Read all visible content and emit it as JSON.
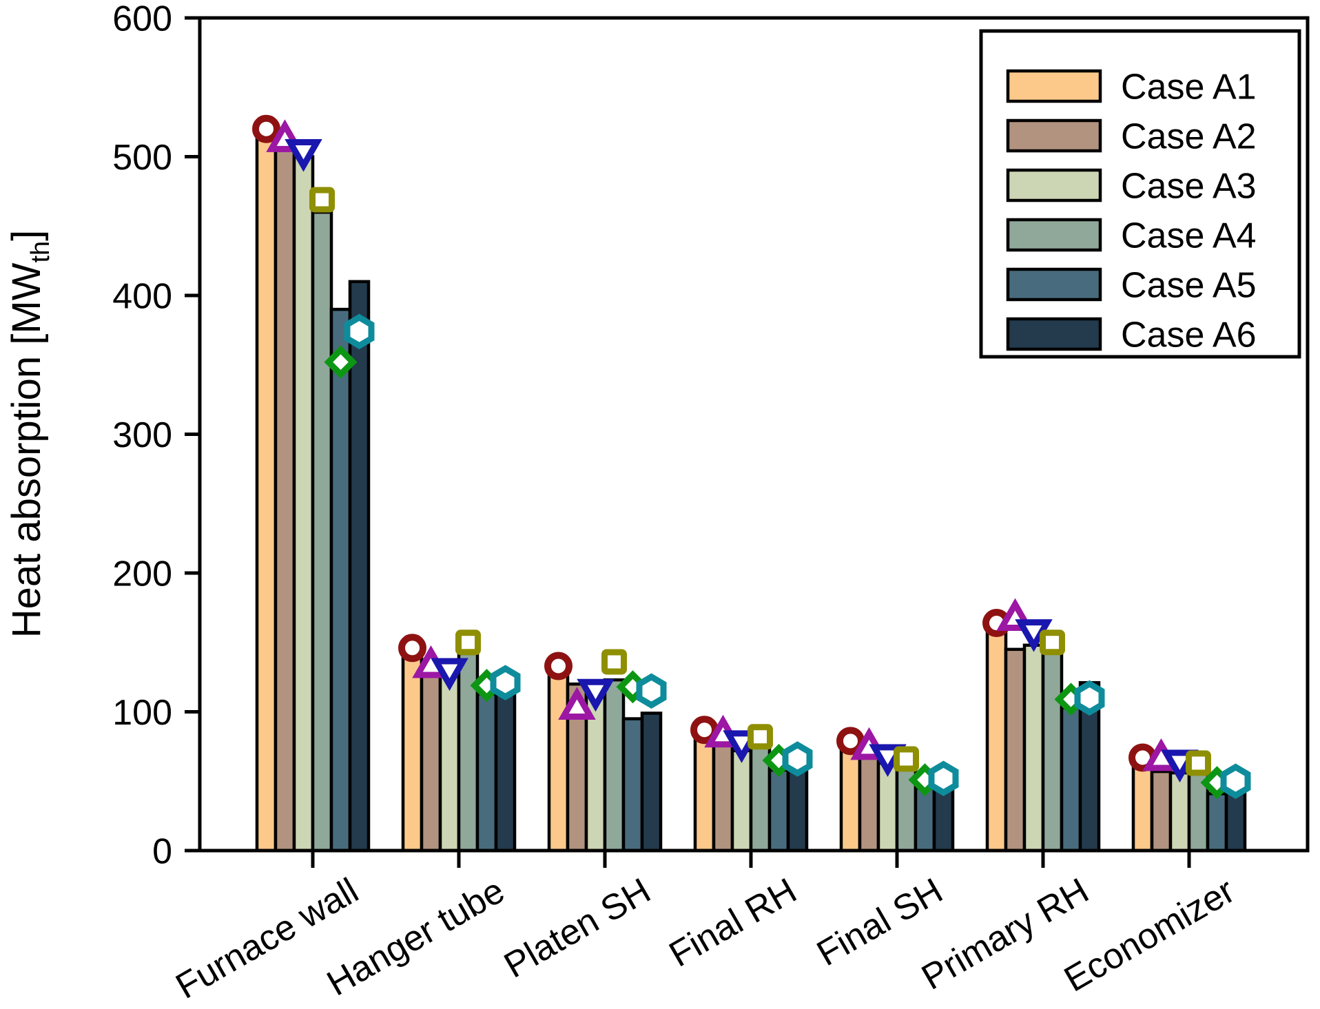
{
  "chart_data": {
    "type": "bar",
    "title": "",
    "ylabel": {
      "text": "Heat absorption [MW",
      "sub": "th",
      "end": "]"
    },
    "xlabel": "",
    "ylim": [
      0,
      600
    ],
    "yticks": [
      0,
      100,
      200,
      300,
      400,
      500,
      600
    ],
    "grid": false,
    "legend_position": "top-right",
    "background": "#FFFFFF",
    "axis_color": "#000000",
    "categories": [
      "Furnace wall",
      "Hanger tube",
      "Platen SH",
      "Final RH",
      "Final SH",
      "Primary RH",
      "Economizer"
    ],
    "series": [
      {
        "name": "Case A1",
        "bar_color": "#FCC98B",
        "marker_shape": "circle",
        "marker_color": "#8E1212",
        "bar_values": [
          515,
          140,
          130,
          81,
          73,
          158,
          60
        ],
        "marker_values": [
          520,
          146,
          133,
          87,
          79,
          164,
          67
        ]
      },
      {
        "name": "Case A2",
        "bar_color": "#B29380",
        "marker_shape": "triangle-up",
        "marker_color": "#9C17A4",
        "bar_values": [
          510,
          137,
          120,
          76,
          67,
          145,
          57
        ],
        "marker_values": [
          512,
          133,
          103,
          83,
          74,
          167,
          66
        ]
      },
      {
        "name": "Case A3",
        "bar_color": "#CDD6B4",
        "marker_shape": "triangle-down",
        "marker_color": "#1A17AE",
        "bar_values": [
          500,
          131,
          117,
          72,
          63,
          148,
          56
        ],
        "marker_values": [
          504,
          130,
          115,
          78,
          68,
          158,
          64
        ]
      },
      {
        "name": "Case A4",
        "bar_color": "#8FA89A",
        "marker_shape": "square",
        "marker_color": "#8F8F04",
        "bar_values": [
          460,
          142,
          123,
          75,
          59,
          143,
          55
        ],
        "marker_values": [
          469,
          150,
          136,
          82,
          66,
          150,
          63
        ]
      },
      {
        "name": "Case A5",
        "bar_color": "#486C7E",
        "marker_shape": "diamond",
        "marker_color": "#0D9613",
        "bar_values": [
          390,
          113,
          95,
          58,
          45,
          103,
          41
        ],
        "marker_values": [
          352,
          119,
          118,
          65,
          51,
          109,
          49
        ]
      },
      {
        "name": "Case A6",
        "bar_color": "#233B4D",
        "marker_shape": "hexagon",
        "marker_color": "#0E8C9C",
        "bar_values": [
          410,
          115,
          99,
          59,
          46,
          121,
          42
        ],
        "marker_values": [
          374,
          121,
          115,
          66,
          52,
          110,
          50
        ]
      }
    ]
  }
}
